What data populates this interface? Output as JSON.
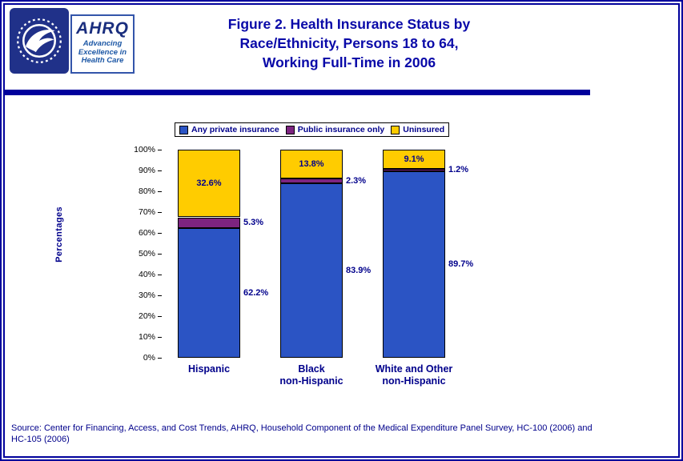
{
  "header": {
    "title_lines": [
      "Figure 2. Health Insurance Status by",
      "Race/Ethnicity, Persons 18 to 64,",
      "Working Full-Time in 2006"
    ],
    "logo": {
      "agency": "AHRQ",
      "tagline_lines": [
        "Advancing",
        "Excellence in",
        "Health Care"
      ]
    }
  },
  "chart_data": {
    "type": "bar",
    "stacked": true,
    "title": "Figure 2. Health Insurance Status by Race/Ethnicity, Persons 18 to 64, Working Full-Time in 2006",
    "categories": [
      "Hispanic",
      "Black\nnon-Hispanic",
      "White and Other\nnon-Hispanic"
    ],
    "series": [
      {
        "name": "Any private insurance",
        "color": "#2B54C4",
        "values": [
          62.2,
          83.9,
          89.7
        ],
        "label_placement": "right"
      },
      {
        "name": "Public insurance only",
        "color": "#7D2480",
        "values": [
          5.3,
          2.3,
          1.2
        ],
        "label_placement": "right"
      },
      {
        "name": "Uninsured",
        "color": "#FFCC00",
        "values": [
          32.6,
          13.8,
          9.1
        ],
        "label_placement": "inside"
      }
    ],
    "xlabel": "",
    "ylabel": "Percentages",
    "ylim": [
      0,
      100
    ],
    "ytick_step": 10,
    "grid": false,
    "legend_position": "top"
  },
  "source": {
    "lines": [
      "Source: Center for Financing, Access, and Cost Trends, AHRQ, Household Component of the Medical Expenditure Panel Survey, HC-100 (2006) and",
      "HC-105 (2006)"
    ]
  },
  "colors": {
    "accent_navy": "#00009C",
    "text_navy": "#00008B"
  }
}
